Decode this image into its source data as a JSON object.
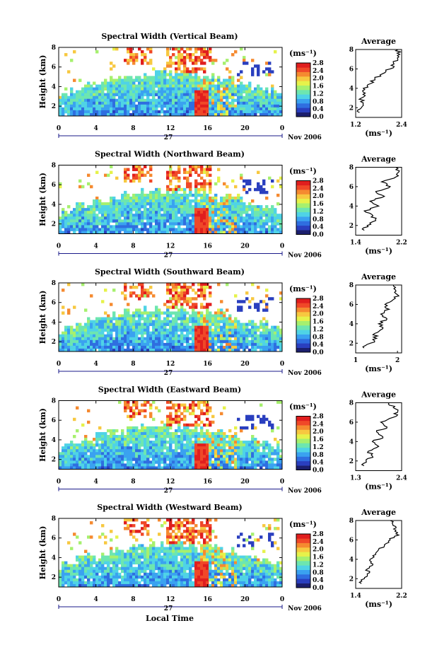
{
  "figure": {
    "xlabel": "Local Time",
    "date_label": "Nov 2006",
    "day_label": "27",
    "colorbar_unit": "(ms⁻¹)",
    "colorbar_ticks": [
      "0.0",
      "0.4",
      "0.8",
      "1.2",
      "1.6",
      "2.0",
      "2.4",
      "2.8"
    ],
    "colormap": [
      "#1c1f6e",
      "#2a3fbf",
      "#2f6ee0",
      "#3aa2f0",
      "#4fd3e6",
      "#6de6b0",
      "#a6f06e",
      "#e6f24a",
      "#f7c840",
      "#f58a30",
      "#f04828",
      "#e01e1e"
    ]
  },
  "chart_data": [
    {
      "type": "heatmap",
      "title": "Spectral Width (Vertical Beam)",
      "ylabel": "Height (km)",
      "xlim": [
        0,
        24
      ],
      "ylim": [
        1,
        8
      ],
      "xticks": [
        "0",
        "4",
        "8",
        "12",
        "16",
        "20",
        "0"
      ],
      "yticks": [
        "2",
        "4",
        "6",
        "8"
      ],
      "profile": {
        "title": "Average",
        "xlabel": "(ms⁻¹)",
        "xticks": [
          "1.2",
          "2.4"
        ],
        "xlim": [
          1.2,
          2.4
        ],
        "yticks": [
          "2",
          "4",
          "6",
          "8"
        ],
        "heights": [
          1.5,
          2,
          2.5,
          3,
          3.5,
          4,
          4.5,
          5,
          5.5,
          6,
          6.5,
          7,
          7.5,
          8
        ],
        "values": [
          1.3,
          1.35,
          1.4,
          1.35,
          1.45,
          1.4,
          1.6,
          1.7,
          1.9,
          2.1,
          2.2,
          2.3,
          2.35,
          2.3
        ]
      }
    },
    {
      "type": "heatmap",
      "title": "Spectral Width (Northward Beam)",
      "ylabel": "Height (km)",
      "xlim": [
        0,
        24
      ],
      "ylim": [
        1,
        8
      ],
      "xticks": [
        "0",
        "4",
        "8",
        "12",
        "16",
        "20",
        "0"
      ],
      "yticks": [
        "2",
        "4",
        "6",
        "8"
      ],
      "profile": {
        "title": "Average",
        "xlabel": "(ms⁻¹)",
        "xticks": [
          "1.4",
          "2.2"
        ],
        "xlim": [
          1.4,
          2.2
        ],
        "yticks": [
          "2",
          "4",
          "6",
          "8"
        ],
        "heights": [
          1.5,
          2,
          2.5,
          3,
          3.5,
          4,
          4.5,
          5,
          5.5,
          6,
          6.5,
          7,
          7.5,
          8
        ],
        "values": [
          1.55,
          1.6,
          1.75,
          1.7,
          1.55,
          1.8,
          1.65,
          1.9,
          1.75,
          2.0,
          1.85,
          2.1,
          2.15,
          2.1
        ]
      }
    },
    {
      "type": "heatmap",
      "title": "Spectral Width (Southward Beam)",
      "ylabel": "Height (km)",
      "xlim": [
        0,
        24
      ],
      "ylim": [
        1,
        8
      ],
      "xticks": [
        "0",
        "4",
        "8",
        "12",
        "16",
        "20",
        "0"
      ],
      "yticks": [
        "2",
        "4",
        "6",
        "8"
      ],
      "profile": {
        "title": "Average",
        "xlabel": "(ms⁻¹)",
        "xticks": [
          "1",
          "2"
        ],
        "xlim": [
          1,
          2.1
        ],
        "yticks": [
          "2",
          "4",
          "6",
          "8"
        ],
        "heights": [
          1.5,
          2,
          2.5,
          3,
          3.5,
          4,
          4.5,
          5,
          5.5,
          6,
          6.5,
          7,
          7.5,
          8
        ],
        "values": [
          1.2,
          1.35,
          1.5,
          1.45,
          1.65,
          1.55,
          1.75,
          1.6,
          1.8,
          1.7,
          1.9,
          2.0,
          1.95,
          1.9
        ]
      }
    },
    {
      "type": "heatmap",
      "title": "Spectral Width (Eastward Beam)",
      "ylabel": "Height (km)",
      "xlim": [
        0,
        24
      ],
      "ylim": [
        1,
        8
      ],
      "xticks": [
        "0",
        "4",
        "8",
        "12",
        "16",
        "20",
        "0"
      ],
      "yticks": [
        "2",
        "4",
        "6",
        "8"
      ],
      "profile": {
        "title": "Average",
        "xlabel": "(ms⁻¹)",
        "xticks": [
          "1.3",
          "2.4"
        ],
        "xlim": [
          1.3,
          2.4
        ],
        "yticks": [
          "2",
          "4",
          "6",
          "8"
        ],
        "heights": [
          1.5,
          2,
          2.5,
          3,
          3.5,
          4,
          4.5,
          5,
          5.5,
          6,
          6.5,
          7,
          7.5,
          8
        ],
        "values": [
          1.5,
          1.55,
          1.7,
          1.6,
          1.85,
          1.7,
          1.95,
          1.8,
          2.05,
          1.9,
          2.2,
          2.3,
          2.2,
          2.1
        ]
      }
    },
    {
      "type": "heatmap",
      "title": "Spectral Width (Westward Beam)",
      "ylabel": "Height (km)",
      "xlim": [
        0,
        24
      ],
      "ylim": [
        1,
        8
      ],
      "xticks": [
        "0",
        "4",
        "8",
        "12",
        "16",
        "20",
        "0"
      ],
      "yticks": [
        "2",
        "4",
        "6",
        "8"
      ],
      "profile": {
        "title": "Average",
        "xlabel": "(ms⁻¹)",
        "xticks": [
          "1.4",
          "2.2"
        ],
        "xlim": [
          1.4,
          2.2
        ],
        "yticks": [
          "2",
          "4",
          "6",
          "8"
        ],
        "heights": [
          1.5,
          2,
          2.5,
          3,
          3.5,
          4,
          4.5,
          5,
          5.5,
          6,
          6.5,
          7,
          7.5,
          8
        ],
        "values": [
          1.5,
          1.55,
          1.6,
          1.6,
          1.7,
          1.65,
          1.75,
          1.8,
          1.9,
          2.0,
          2.15,
          2.1,
          2.05,
          2.0
        ]
      }
    }
  ]
}
